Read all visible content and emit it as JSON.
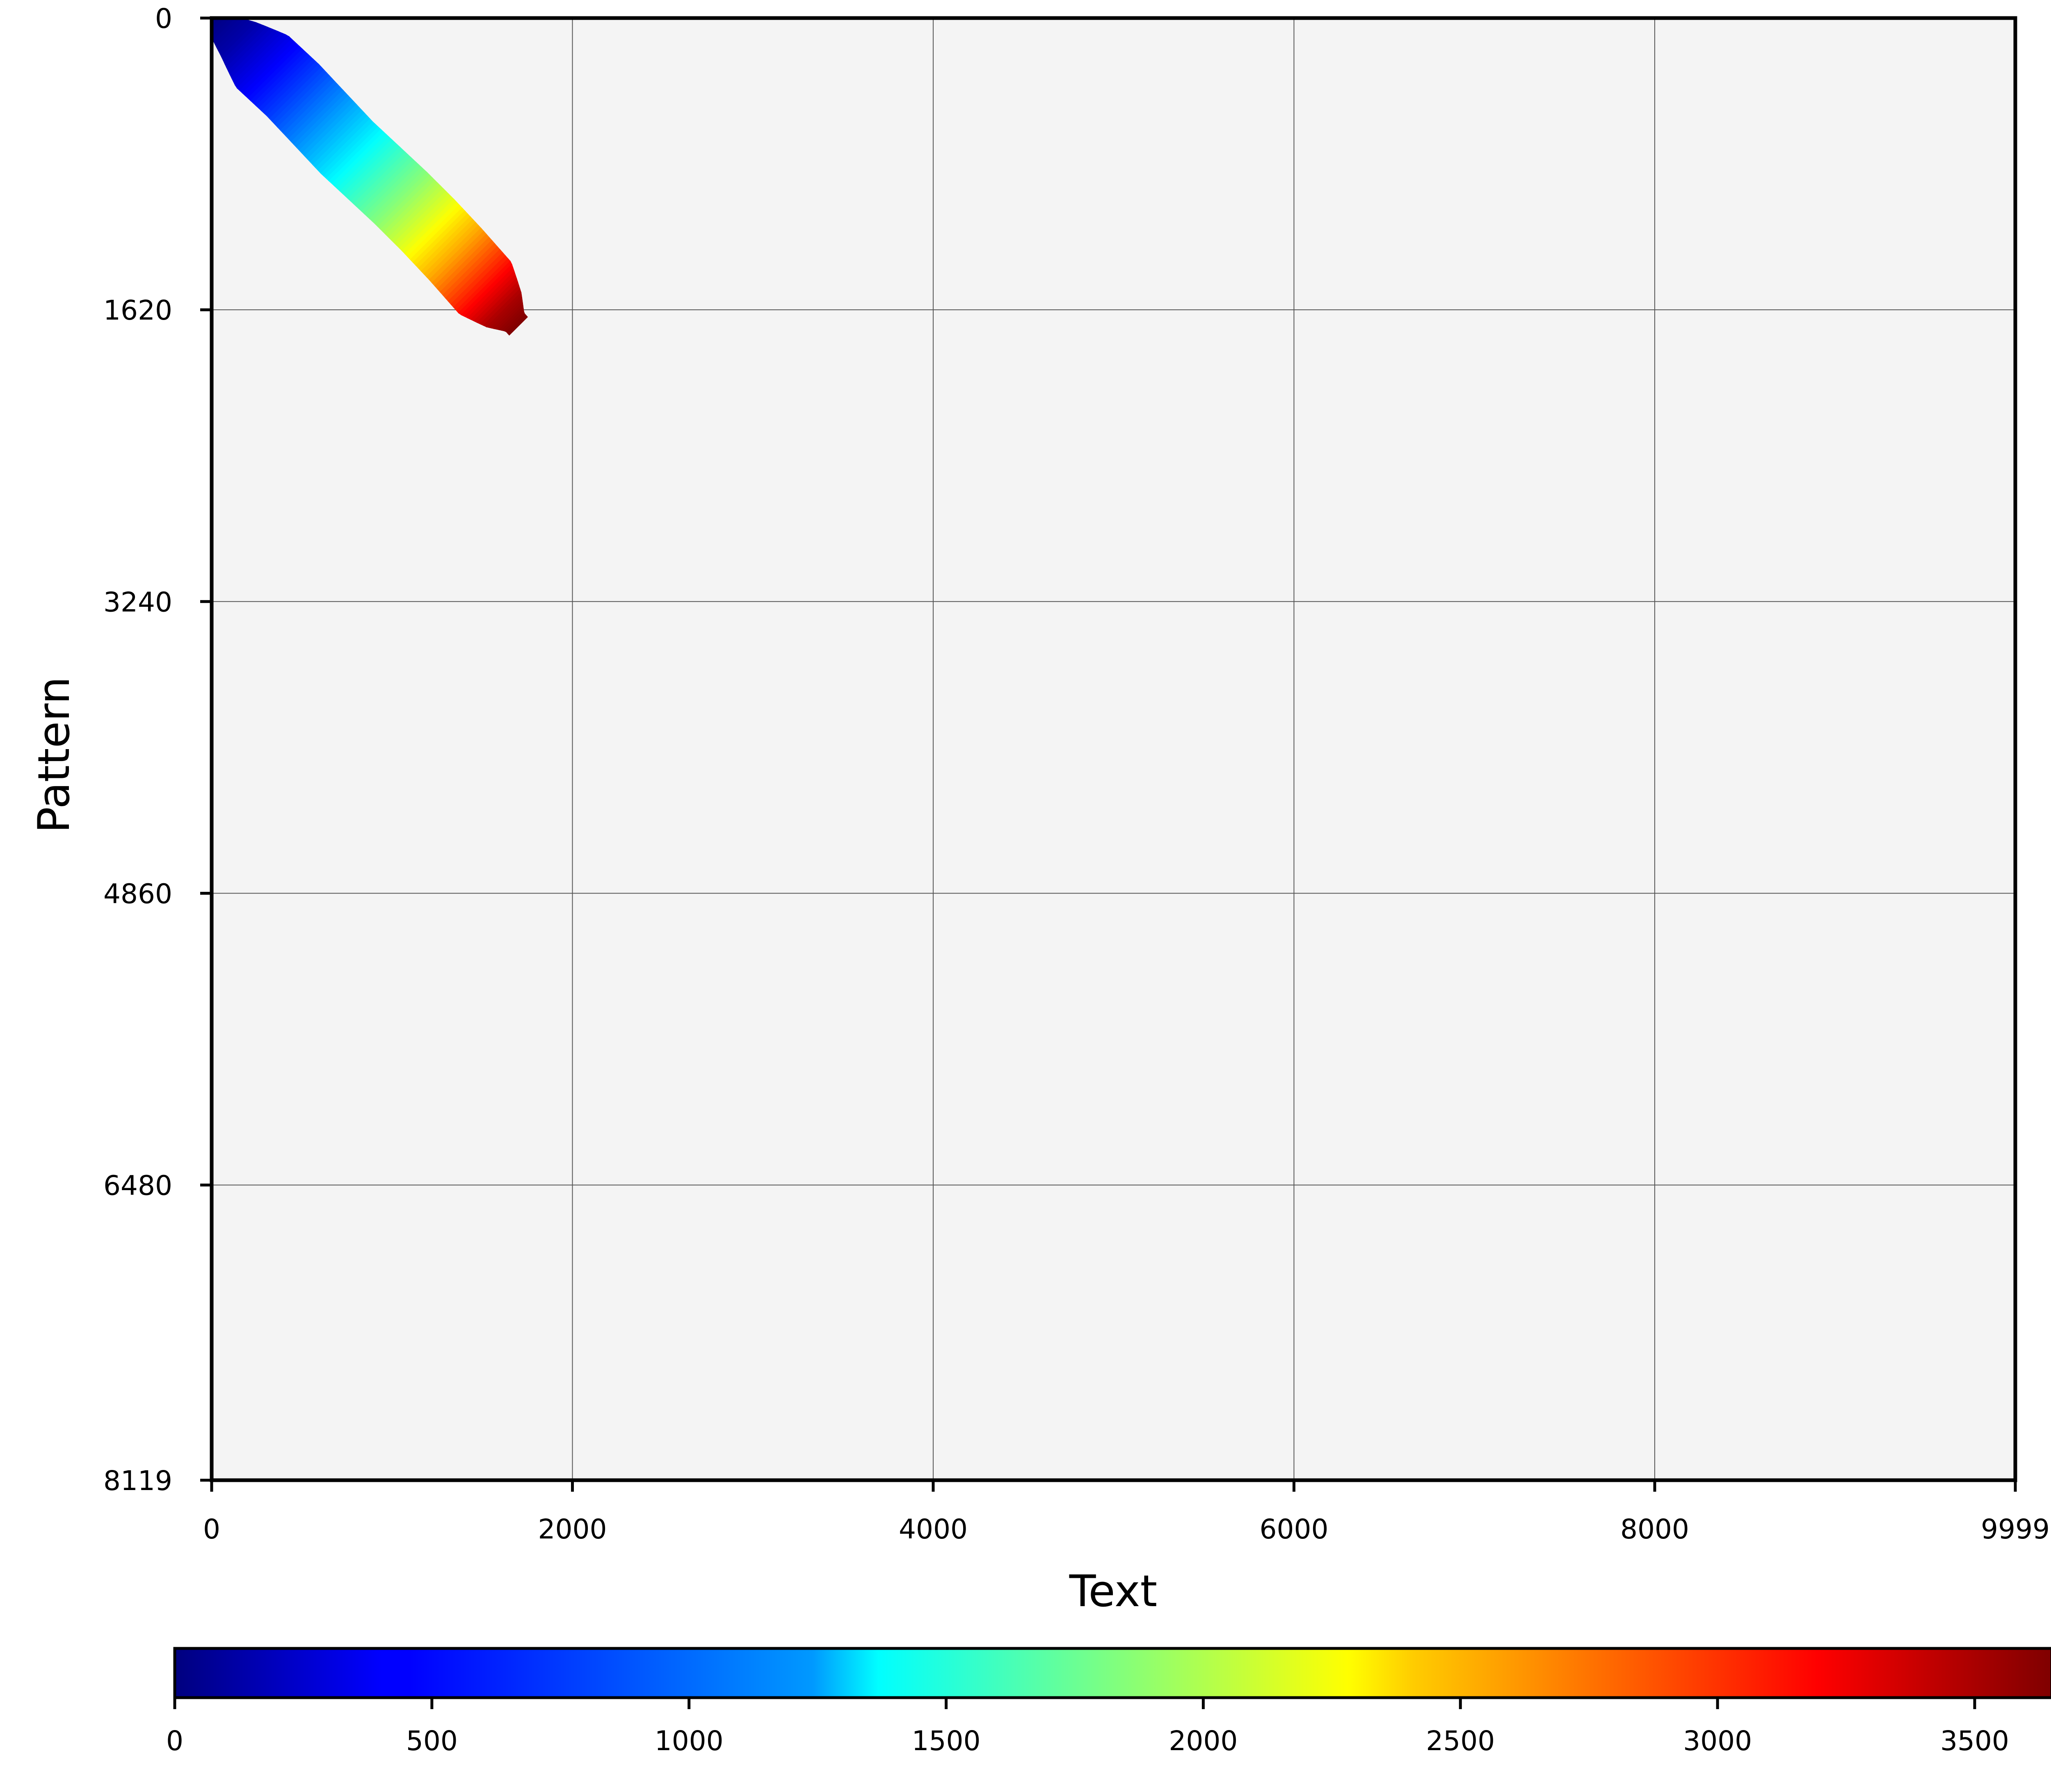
{
  "chart_data": {
    "type": "heatmap",
    "title": "",
    "xlabel": "Text",
    "ylabel": "Pattern",
    "xlim": [
      0,
      9999
    ],
    "ylim": [
      0,
      8119
    ],
    "y_axis_inverted": true,
    "x_ticks": [
      0,
      2000,
      4000,
      6000,
      8000,
      9999
    ],
    "y_ticks": [
      0,
      1620,
      3240,
      4860,
      6480,
      8119
    ],
    "grid": true,
    "background": "#f4f4f4",
    "colormap": "jet",
    "colorbar": {
      "orientation": "horizontal",
      "placement": "bottom",
      "range": [
        0,
        3650
      ],
      "ticks": [
        0,
        500,
        1000,
        1500,
        2000,
        2500,
        3000,
        3500
      ]
    },
    "region": {
      "description": "cumulative cost band along the alignment diagonal near the top-left",
      "centerline": [
        {
          "x": 0,
          "y": 0,
          "value": 0
        },
        {
          "x": 150,
          "y": 120,
          "value": 150
        },
        {
          "x": 300,
          "y": 260,
          "value": 400
        },
        {
          "x": 450,
          "y": 400,
          "value": 650
        },
        {
          "x": 600,
          "y": 560,
          "value": 950
        },
        {
          "x": 750,
          "y": 720,
          "value": 1250
        },
        {
          "x": 900,
          "y": 860,
          "value": 1550
        },
        {
          "x": 1050,
          "y": 1000,
          "value": 1850
        },
        {
          "x": 1200,
          "y": 1150,
          "value": 2200
        },
        {
          "x": 1350,
          "y": 1310,
          "value": 2600
        },
        {
          "x": 1500,
          "y": 1480,
          "value": 3100
        },
        {
          "x": 1620,
          "y": 1620,
          "value": 3500
        },
        {
          "x": 1700,
          "y": 1710,
          "value": 3650
        }
      ],
      "halfwidth_x": 260
    }
  }
}
